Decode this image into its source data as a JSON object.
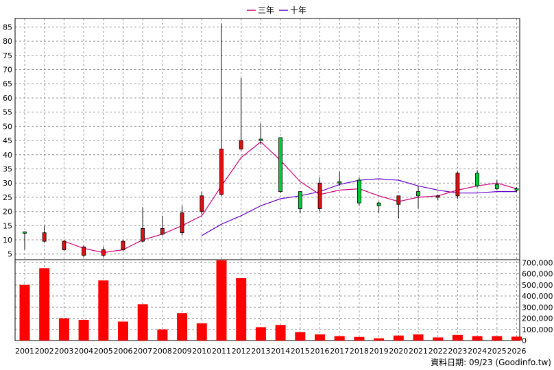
{
  "chart_data": {
    "type": "candlestick",
    "legend": [
      {
        "name": "三年",
        "color": "#cc0077"
      },
      {
        "name": "十年",
        "color": "#6600cc"
      }
    ],
    "source_note": "資料日期: 09/23 (Goodinfo.tw)",
    "years": [
      "2001",
      "2002",
      "2003",
      "2004",
      "2005",
      "2006",
      "2007",
      "2008",
      "2009",
      "2010",
      "2011",
      "2012",
      "2013",
      "2014",
      "2015",
      "2016",
      "2017",
      "2018",
      "2019",
      "2020",
      "2021",
      "2022",
      "2023",
      "2024",
      "2025",
      "2026"
    ],
    "price_axis": {
      "ticks": [
        5,
        10,
        15,
        20,
        25,
        30,
        35,
        40,
        45,
        50,
        55,
        60,
        65,
        70,
        75,
        80,
        85
      ],
      "range": [
        3,
        88
      ]
    },
    "volume_axis": {
      "ticks": [
        0,
        100000,
        200000,
        300000,
        400000,
        500000,
        600000,
        700000
      ],
      "tick_labels": [
        "0",
        "100,000",
        "200,000",
        "300,000",
        "400,000",
        "500,000",
        "600,000",
        "700,000"
      ],
      "range": [
        0,
        720000
      ]
    },
    "candles": [
      {
        "year": "2001",
        "open": 12.5,
        "close": 12.8,
        "high": 13.0,
        "low": 6.5
      },
      {
        "year": "2002",
        "open": 12.5,
        "close": 9.5,
        "high": 15.0,
        "low": 9.0
      },
      {
        "year": "2003",
        "open": 9.5,
        "close": 6.5,
        "high": 10.0,
        "low": 6.0
      },
      {
        "year": "2004",
        "open": 7.5,
        "close": 4.5,
        "high": 8.0,
        "low": 4.0
      },
      {
        "year": "2005",
        "open": 6.5,
        "close": 4.5,
        "high": 7.5,
        "low": 4.0
      },
      {
        "year": "2006",
        "open": 9.5,
        "close": 6.5,
        "high": 10.0,
        "low": 6.0
      },
      {
        "year": "2007",
        "open": 14.0,
        "close": 9.5,
        "high": 21.5,
        "low": 9.0
      },
      {
        "year": "2008",
        "open": 14.0,
        "close": 12.0,
        "high": 18.5,
        "low": 11.5
      },
      {
        "year": "2009",
        "open": 19.5,
        "close": 12.5,
        "high": 22.0,
        "low": 11.5
      },
      {
        "year": "2010",
        "open": 25.5,
        "close": 20.0,
        "high": 27.0,
        "low": 19.0
      },
      {
        "year": "2011",
        "open": 42.0,
        "close": 26.0,
        "high": 86.0,
        "low": 25.5
      },
      {
        "year": "2012",
        "open": 45.0,
        "close": 42.0,
        "high": 67.0,
        "low": 41.5
      },
      {
        "year": "2013",
        "open": 45.5,
        "close": 45.5,
        "high": 51.0,
        "low": 43.5
      },
      {
        "year": "2014",
        "open": 27.0,
        "close": 46.0,
        "high": 46.0,
        "low": 26.5
      },
      {
        "year": "2015",
        "open": 21.0,
        "close": 27.0,
        "high": 27.0,
        "low": 19.5
      },
      {
        "year": "2016",
        "open": 30.0,
        "close": 21.0,
        "high": 32.0,
        "low": 20.0
      },
      {
        "year": "2017",
        "open": 30.0,
        "close": 30.5,
        "high": 34.0,
        "low": 29.0
      },
      {
        "year": "2018",
        "open": 23.0,
        "close": 31.0,
        "high": 32.0,
        "low": 22.0
      },
      {
        "year": "2019",
        "open": 22.0,
        "close": 23.0,
        "high": 23.5,
        "low": 19.5
      },
      {
        "year": "2020",
        "open": 25.5,
        "close": 22.5,
        "high": 25.5,
        "low": 17.5
      },
      {
        "year": "2021",
        "open": 25.5,
        "close": 27.0,
        "high": 29.0,
        "low": 21.0
      },
      {
        "year": "2022",
        "open": 25.5,
        "close": 25.0,
        "high": 26.0,
        "low": 24.0
      },
      {
        "year": "2023",
        "open": 33.5,
        "close": 25.5,
        "high": 34.0,
        "low": 24.5
      },
      {
        "year": "2024",
        "open": 29.0,
        "close": 33.5,
        "high": 34.5,
        "low": 28.5
      },
      {
        "year": "2025",
        "open": 28.0,
        "close": 29.5,
        "high": 31.0,
        "low": 27.5
      },
      {
        "year": "2026",
        "open": 27.5,
        "close": 28.0,
        "high": 28.5,
        "low": 27.0
      }
    ],
    "ma3": [
      null,
      null,
      9.5,
      7.0,
      5.5,
      6.5,
      10.0,
      12.0,
      15.0,
      18.5,
      29.0,
      39.0,
      44.5,
      38.0,
      30.5,
      26.0,
      27.5,
      28.0,
      25.5,
      23.5,
      25.0,
      25.5,
      27.5,
      29.0,
      30.0,
      28.0
    ],
    "ma10": [
      null,
      null,
      null,
      null,
      null,
      null,
      null,
      null,
      null,
      11.5,
      15.5,
      18.5,
      22.0,
      24.5,
      25.5,
      27.0,
      29.5,
      31.0,
      31.5,
      31.0,
      29.0,
      27.5,
      26.5,
      26.5,
      27.0,
      27.0
    ],
    "volume": [
      500000,
      650000,
      200000,
      185000,
      540000,
      170000,
      325000,
      100000,
      245000,
      155000,
      720000,
      560000,
      120000,
      140000,
      75000,
      55000,
      40000,
      32000,
      20000,
      45000,
      55000,
      28000,
      50000,
      40000,
      40000,
      35000
    ]
  }
}
